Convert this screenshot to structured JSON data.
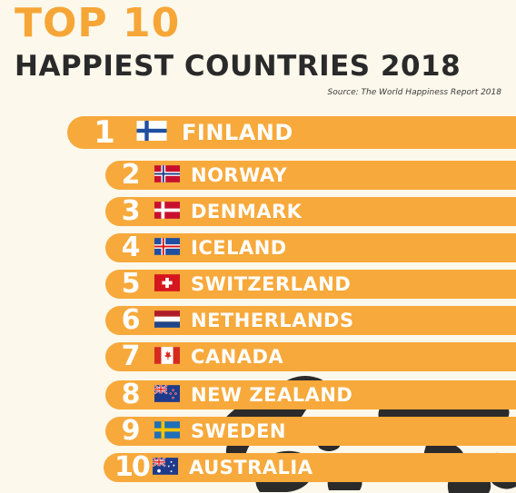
{
  "header": {
    "title_top": "TOP 10",
    "title_main": "HAPPIEST COUNTRIES 2018",
    "source": "Source: The World Happiness Report 2018"
  },
  "colors": {
    "accent": "#f7a93b",
    "title_accent": "#f6a636",
    "text_dark": "#2a2a2a",
    "background": "#fcf8ec"
  },
  "chart_data": {
    "type": "table",
    "title": "HAPPIEST COUNTRIES 2018",
    "rows": [
      {
        "rank": "1",
        "country": "FINLAND",
        "flag": "finland-flag"
      },
      {
        "rank": "2",
        "country": "NORWAY",
        "flag": "norway-flag"
      },
      {
        "rank": "3",
        "country": "DENMARK",
        "flag": "denmark-flag"
      },
      {
        "rank": "4",
        "country": "ICELAND",
        "flag": "iceland-flag"
      },
      {
        "rank": "5",
        "country": "SWITZERLAND",
        "flag": "switzerland-flag"
      },
      {
        "rank": "6",
        "country": "NETHERLANDS",
        "flag": "netherlands-flag"
      },
      {
        "rank": "7",
        "country": "CANADA",
        "flag": "canada-flag"
      },
      {
        "rank": "8",
        "country": "NEW ZEALAND",
        "flag": "new-zealand-flag"
      },
      {
        "rank": "9",
        "country": "SWEDEN",
        "flag": "sweden-flag"
      },
      {
        "rank": "10",
        "country": "AUSTRALIA",
        "flag": "australia-flag"
      }
    ]
  }
}
